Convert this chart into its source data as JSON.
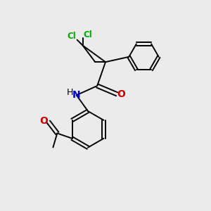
{
  "background_color": "#ebebeb",
  "bond_color": "#000000",
  "cl_color": "#00aa00",
  "nitrogen_color": "#0000cc",
  "oxygen_color": "#cc0000",
  "cl_label": "Cl",
  "o_label": "O",
  "n_label": "N",
  "h_label": "H",
  "figsize": [
    3.0,
    3.0
  ],
  "dpi": 100,
  "lw": 1.4
}
